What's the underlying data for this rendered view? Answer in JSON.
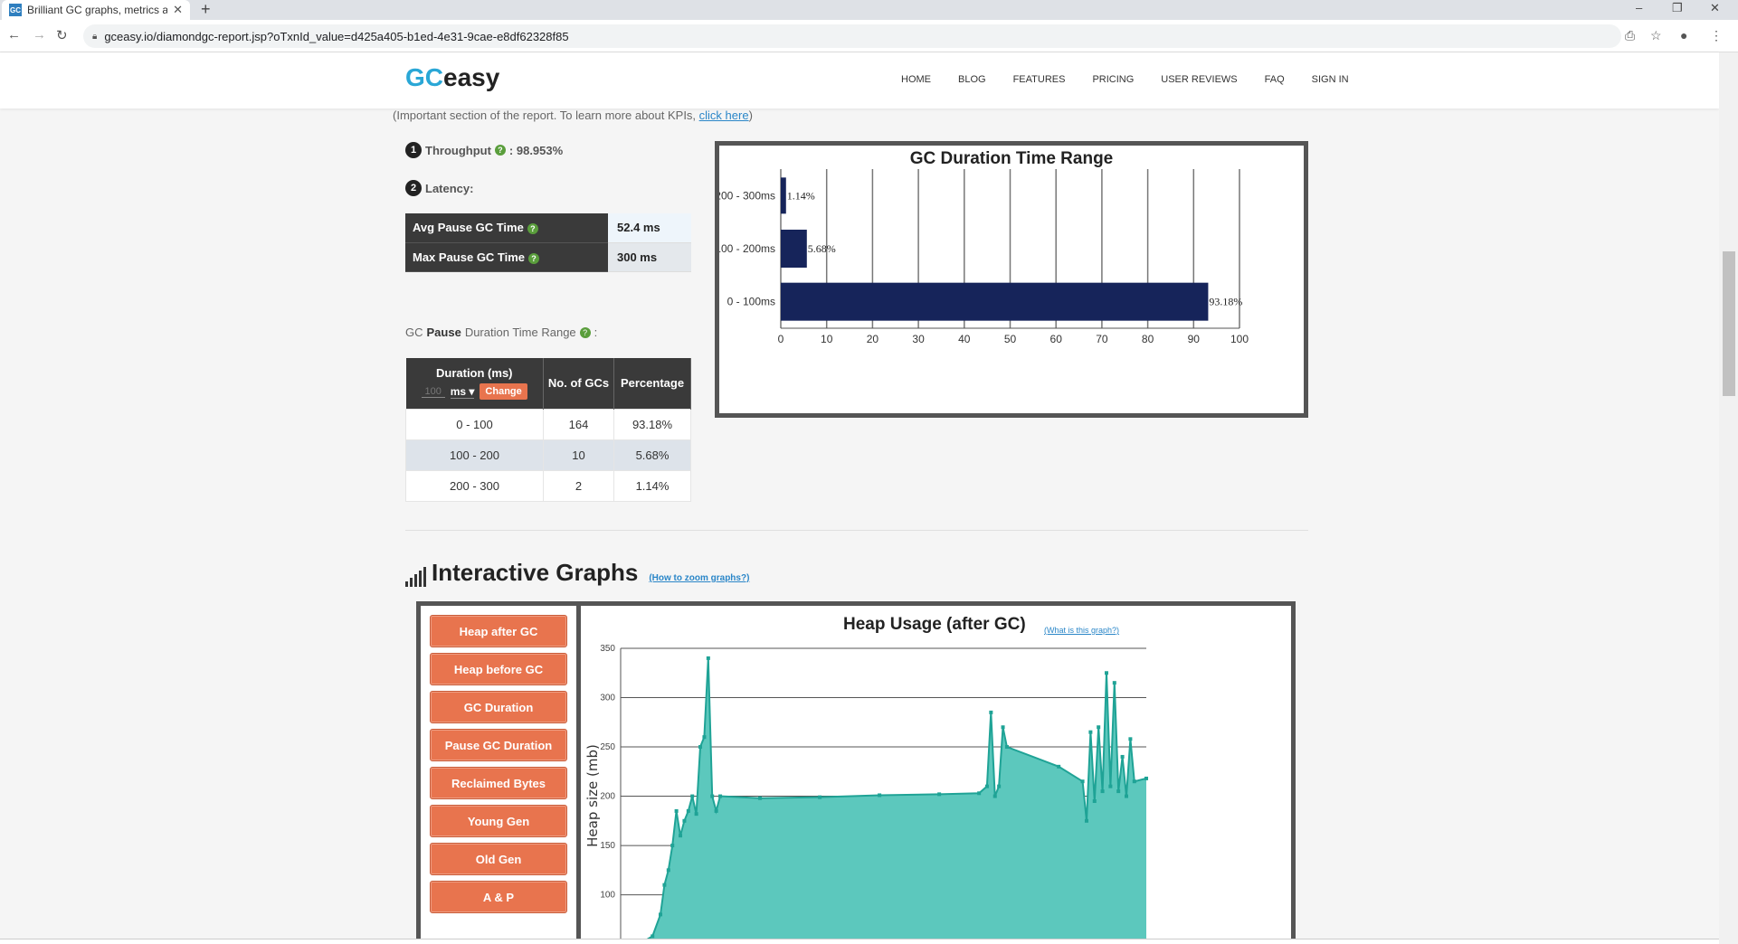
{
  "browser": {
    "tab_title": "Brilliant GC graphs, metrics an",
    "favicon": "GC",
    "url": "gceasy.io/diamondgc-report.jsp?oTxnId_value=d425a405-b1ed-4e31-9cae-e8df62328f85"
  },
  "site": {
    "logo_gc": "GC",
    "logo_easy": "easy",
    "nav": [
      "HOME",
      "BLOG",
      "FEATURES",
      "PRICING",
      "USER REVIEWS",
      "FAQ",
      "SIGN IN"
    ]
  },
  "note": {
    "text": "(Important section of the report. To learn more about KPIs, ",
    "link": "click here",
    "close": ")"
  },
  "kpi": {
    "throughput_num": "1",
    "throughput_label": "Throughput",
    "throughput_value": ": 98.953%",
    "latency_num": "2",
    "latency_label": "Latency:",
    "avg_label": "Avg Pause GC Time",
    "avg_value": "52.4 ms",
    "max_label": "Max Pause GC Time",
    "max_value": "300 ms"
  },
  "pause_table": {
    "title_pre": "GC",
    "title_bold": "Pause",
    "title_post": "Duration Time Range",
    "headers": [
      "Duration (ms)",
      "No. of GCs",
      "Percentage"
    ],
    "input_placeholder": "100",
    "unit": "ms",
    "change_label": "Change",
    "rows": [
      [
        "0 - 100",
        "164",
        "93.18%"
      ],
      [
        "100 - 200",
        "10",
        "5.68%"
      ],
      [
        "200 - 300",
        "2",
        "1.14%"
      ]
    ]
  },
  "chart_data": [
    {
      "type": "bar",
      "orientation": "horizontal",
      "title": "GC Duration Time Range",
      "categories": [
        "200 - 300ms",
        "100 - 200ms",
        "0 - 100ms"
      ],
      "values": [
        1.14,
        5.68,
        93.18
      ],
      "data_labels": [
        "1.14%",
        "5.68%",
        "93.18%"
      ],
      "xlim": [
        0,
        100
      ],
      "xticks": [
        0,
        10,
        20,
        30,
        40,
        50,
        60,
        70,
        80,
        90,
        100
      ],
      "bar_color": "#16245a",
      "grid": true
    },
    {
      "type": "area",
      "title": "Heap Usage (after GC)",
      "ylabel": "Heap size (mb)",
      "ylim": [
        40,
        350
      ],
      "yticks": [
        50,
        100,
        150,
        200,
        250,
        300,
        350
      ],
      "color": "#5cc8bd",
      "line_color": "#1fa396",
      "points": [
        [
          0,
          44
        ],
        [
          3,
          46
        ],
        [
          8,
          58
        ],
        [
          10,
          80
        ],
        [
          11,
          110
        ],
        [
          12,
          125
        ],
        [
          13,
          150
        ],
        [
          14,
          185
        ],
        [
          15,
          160
        ],
        [
          16,
          175
        ],
        [
          17,
          185
        ],
        [
          18,
          200
        ],
        [
          19,
          182
        ],
        [
          20,
          250
        ],
        [
          21,
          260
        ],
        [
          22,
          340
        ],
        [
          23,
          200
        ],
        [
          24,
          185
        ],
        [
          25,
          200
        ],
        [
          35,
          198
        ],
        [
          50,
          199
        ],
        [
          65,
          201
        ],
        [
          80,
          202
        ],
        [
          90,
          203
        ],
        [
          92,
          210
        ],
        [
          93,
          285
        ],
        [
          94,
          200
        ],
        [
          95,
          210
        ],
        [
          96,
          270
        ],
        [
          97,
          250
        ],
        [
          110,
          230
        ],
        [
          116,
          215
        ],
        [
          117,
          175
        ],
        [
          118,
          265
        ],
        [
          119,
          195
        ],
        [
          120,
          270
        ],
        [
          121,
          205
        ],
        [
          122,
          325
        ],
        [
          123,
          210
        ],
        [
          124,
          315
        ],
        [
          125,
          205
        ],
        [
          126,
          240
        ],
        [
          127,
          200
        ],
        [
          128,
          258
        ],
        [
          129,
          215
        ],
        [
          132,
          218
        ]
      ]
    }
  ],
  "graphs": {
    "section_title": "Interactive Graphs",
    "zoom_link": "(How to zoom graphs?)",
    "buttons": [
      "Heap after GC",
      "Heap before GC",
      "GC Duration",
      "Pause GC Duration",
      "Reclaimed Bytes",
      "Young Gen",
      "Old Gen",
      "A & P"
    ],
    "heap_title": "Heap Usage (after GC)",
    "heap_link": "(What is this graph?)"
  }
}
